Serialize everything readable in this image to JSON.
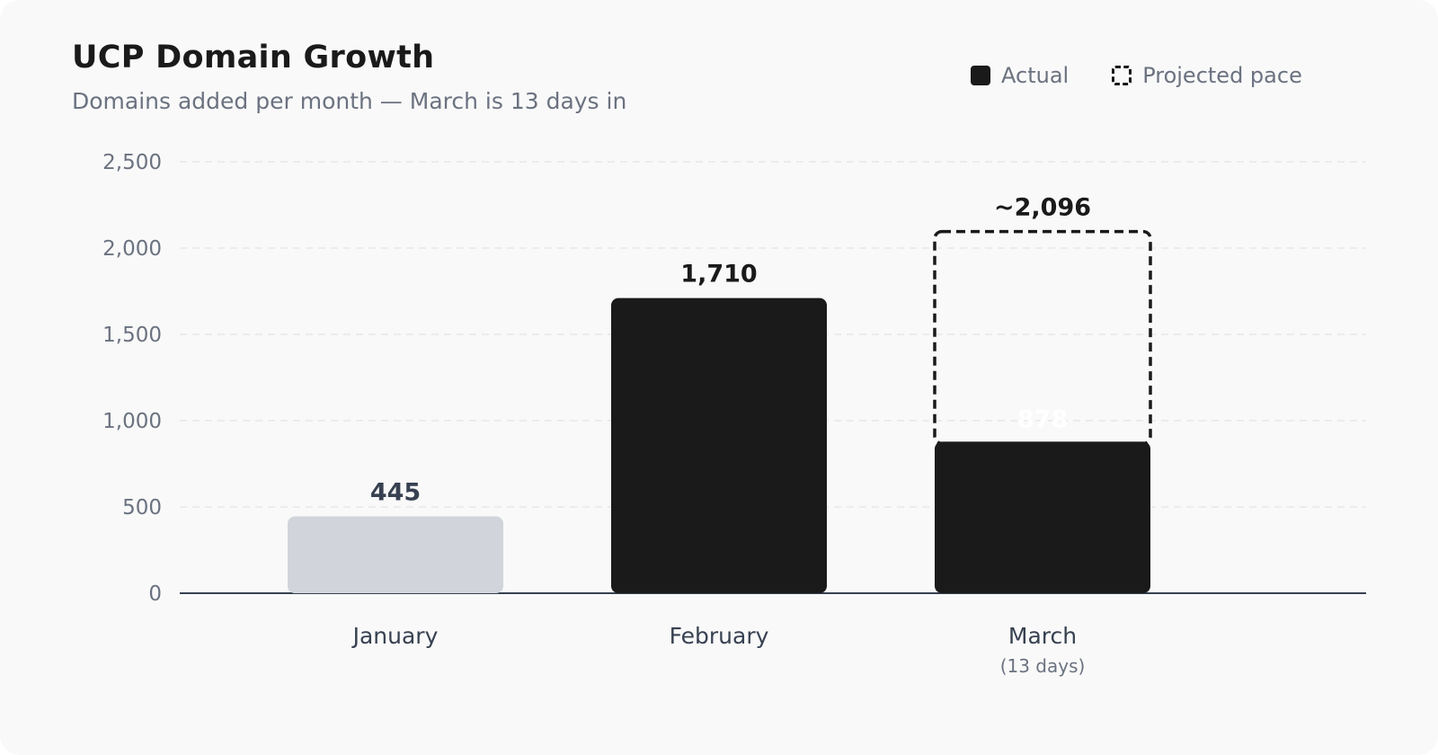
{
  "chart_data": {
    "type": "bar",
    "title": "UCP Domain Growth",
    "subtitle": "Domains added per month — March is 13 days in",
    "categories": [
      "January",
      "February",
      "March"
    ],
    "category_sublabels": [
      "",
      "",
      "(13 days)"
    ],
    "series": [
      {
        "name": "Actual",
        "values": [
          445,
          1710,
          878
        ]
      },
      {
        "name": "Projected pace",
        "values": [
          null,
          null,
          2096
        ]
      }
    ],
    "data_labels": [
      "445",
      "1,710",
      "878"
    ],
    "projected_labels": [
      "",
      "",
      "~2,096"
    ],
    "ylim": [
      0,
      2500
    ],
    "yticks": [
      0,
      500,
      1000,
      1500,
      2000,
      2500
    ],
    "ytick_labels": [
      "0",
      "500",
      "1,000",
      "1,500",
      "2,000",
      "2,500"
    ],
    "xlabel": "",
    "ylabel": "",
    "grid": true,
    "legend_position": "top-right",
    "colors": {
      "actual": "#1a1a1a",
      "january": "#d1d5db",
      "january_label": "#374151",
      "grid": "#e5e7eb",
      "axis": "#374151",
      "tick_text": "#6b7280",
      "category_text": "#374151"
    }
  }
}
